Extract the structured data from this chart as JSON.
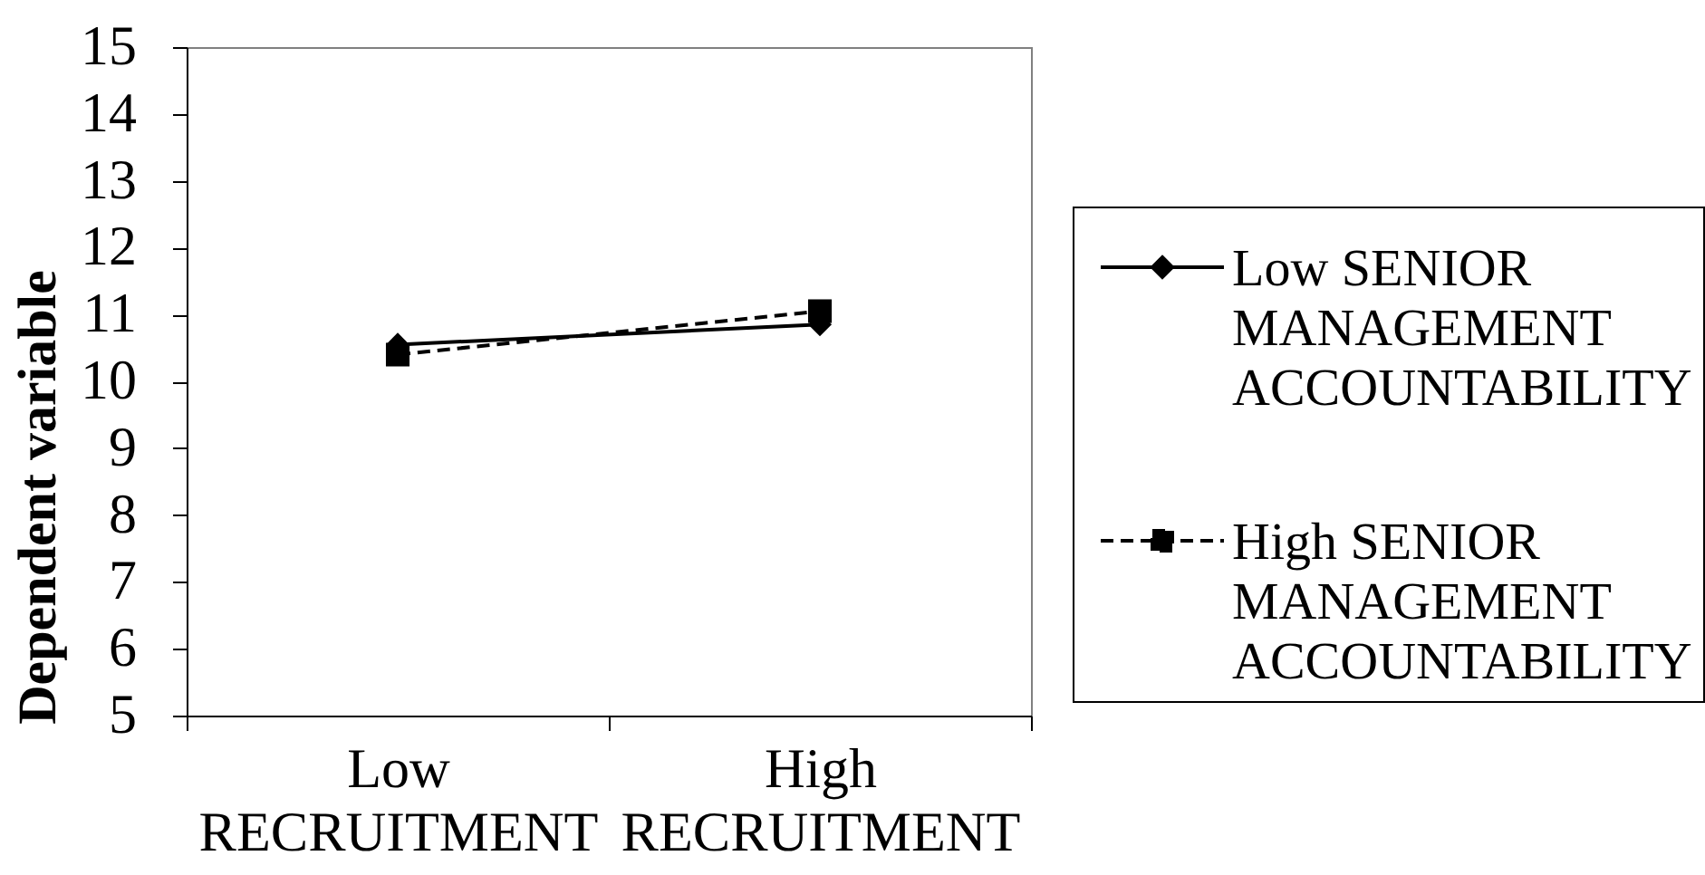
{
  "chart_data": {
    "type": "line",
    "ylabel": "Dependent variable",
    "categories": [
      "Low RECRUITMENT",
      "High RECRUITMENT"
    ],
    "ylim": [
      5,
      15
    ],
    "yticks": [
      5,
      6,
      7,
      8,
      9,
      10,
      11,
      12,
      13,
      14,
      15
    ],
    "legend": "right",
    "series": [
      {
        "name": "Low SENIOR MANAGEMENT ACCOUNTABILITY",
        "color": "#000000",
        "values": [
          10.55,
          10.85
        ],
        "marker": "diamond",
        "line_style": "solid"
      },
      {
        "name": "High SENIOR MANAGEMENT ACCOUNTABILITY",
        "color": "#000000",
        "values": [
          10.4,
          11.05
        ],
        "marker": "square",
        "line_style": "dashed"
      }
    ]
  }
}
